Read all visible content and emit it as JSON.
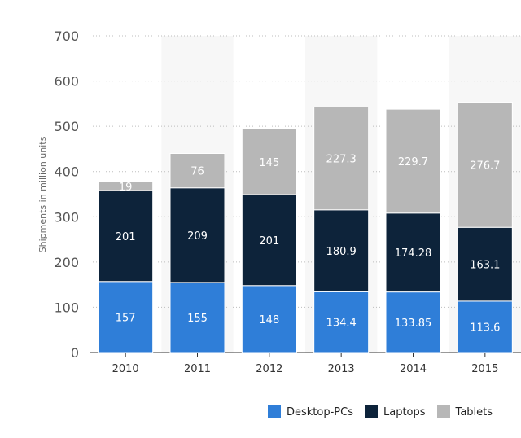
{
  "chart_data": {
    "type": "bar",
    "stacked": true,
    "categories": [
      "2010",
      "2011",
      "2012",
      "2013",
      "2014",
      "2015"
    ],
    "series": [
      {
        "name": "Desktop-PCs",
        "color": "#2f7ed8",
        "values": [
          157,
          155,
          148,
          134.4,
          133.85,
          113.6
        ],
        "labels": [
          "157",
          "155",
          "148",
          "134.4",
          "133.85",
          "113.6"
        ]
      },
      {
        "name": "Laptops",
        "color": "#0d233a",
        "values": [
          201,
          209,
          201,
          180.9,
          174.28,
          163.1
        ],
        "labels": [
          "201",
          "209",
          "201",
          "180.9",
          "174.28",
          "163.1"
        ]
      },
      {
        "name": "Tablets",
        "color": "#b7b7b7",
        "values": [
          19,
          76,
          145,
          227.3,
          229.7,
          276.7
        ],
        "labels": [
          "19",
          "76",
          "145",
          "227.3",
          "229.7",
          "276.7"
        ]
      }
    ],
    "ylabel": "Shipments in million units",
    "ylim": [
      0,
      700
    ],
    "yticks": [
      "0",
      "100",
      "200",
      "300",
      "400",
      "500",
      "600",
      "700"
    ],
    "grid": true,
    "legend": "bottom-right"
  }
}
